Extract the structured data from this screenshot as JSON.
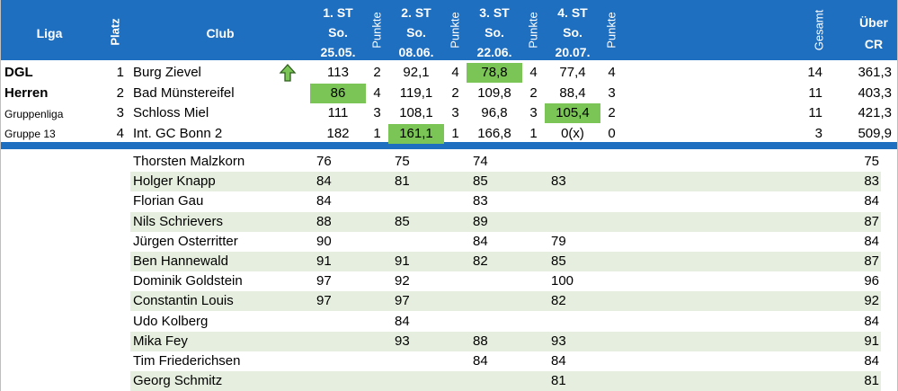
{
  "header": {
    "liga": "Liga",
    "platz": "Platz",
    "club": "Club",
    "punkte": "Punkte",
    "gesamt": "Gesamt",
    "ueber": "Über",
    "cr": "CR",
    "rounds": [
      {
        "l1": "1. ST",
        "l2": "So.",
        "l3": "25.05."
      },
      {
        "l1": "2. ST",
        "l2": "So.",
        "l3": "08.06."
      },
      {
        "l1": "3. ST",
        "l2": "So.",
        "l3": "22.06."
      },
      {
        "l1": "4. ST",
        "l2": "So.",
        "l3": "20.07."
      }
    ]
  },
  "liga": {
    "l1": "DGL",
    "l2": "Herren",
    "l3": "Gruppenliga",
    "l4": "Gruppe 13"
  },
  "standings": [
    {
      "platz": "1",
      "club": "Burg Zievel",
      "s1": "113",
      "p1": "2",
      "s2": "92,1",
      "p2": "4",
      "s3": "78,8",
      "p3": "4",
      "s4": "77,4",
      "p4": "4",
      "gesamt": "14",
      "cr": "361,3"
    },
    {
      "platz": "2",
      "club": "Bad Münstereifel",
      "s1": "86",
      "p1": "4",
      "s2": "119,1",
      "p2": "2",
      "s3": "109,8",
      "p3": "2",
      "s4": "88,4",
      "p4": "3",
      "gesamt": "11",
      "cr": "403,3"
    },
    {
      "platz": "3",
      "club": "Schloss Miel",
      "s1": "111",
      "p1": "3",
      "s2": "108,1",
      "p2": "3",
      "s3": "96,8",
      "p3": "3",
      "s4": "105,4",
      "p4": "2",
      "gesamt": "11",
      "cr": "421,3"
    },
    {
      "platz": "4",
      "club": "Int. GC Bonn 2",
      "s1": "182",
      "p1": "1",
      "s2": "161,1",
      "p2": "1",
      "s3": "166,8",
      "p3": "1",
      "s4": "0(x)",
      "p4": "0",
      "gesamt": "3",
      "cr": "509,9"
    }
  ],
  "players": [
    {
      "name": "Thorsten Malzkorn",
      "s1": "76",
      "s2": "75",
      "s3": "74",
      "s4": "",
      "cr": "75"
    },
    {
      "name": "Holger Knapp",
      "s1": "84",
      "s2": "81",
      "s3": "85",
      "s4": "83",
      "cr": "83"
    },
    {
      "name": "Florian Gau",
      "s1": "84",
      "s2": "",
      "s3": "83",
      "s4": "",
      "cr": "84"
    },
    {
      "name": "Nils Schrievers",
      "s1": "88",
      "s2": "85",
      "s3": "89",
      "s4": "",
      "cr": "87"
    },
    {
      "name": "Jürgen Osterritter",
      "s1": "90",
      "s2": "",
      "s3": "84",
      "s4": "79",
      "cr": "84"
    },
    {
      "name": "Ben Hannewald",
      "s1": "91",
      "s2": "91",
      "s3": "82",
      "s4": "85",
      "cr": "87"
    },
    {
      "name": "Dominik Goldstein",
      "s1": "97",
      "s2": "92",
      "s3": "",
      "s4": "100",
      "cr": "96"
    },
    {
      "name": "Constantin Louis",
      "s1": "97",
      "s2": "97",
      "s3": "",
      "s4": "82",
      "cr": "92"
    },
    {
      "name": "Udo Kolberg",
      "s1": "",
      "s2": "84",
      "s3": "",
      "s4": "",
      "cr": "84"
    },
    {
      "name": "Mika Fey",
      "s1": "",
      "s2": "93",
      "s3": "88",
      "s4": "93",
      "cr": "91"
    },
    {
      "name": "Tim Friederichsen",
      "s1": "",
      "s2": "",
      "s3": "84",
      "s4": "84",
      "cr": "84"
    },
    {
      "name": "Georg Schmitz",
      "s1": "",
      "s2": "",
      "s3": "",
      "s4": "81",
      "cr": "81"
    }
  ],
  "icons": {
    "trend": "up-arrow-icon"
  },
  "colors": {
    "header": "#1f6fc1",
    "highlight": "#7ac555",
    "stripe": "#e6efdf"
  }
}
